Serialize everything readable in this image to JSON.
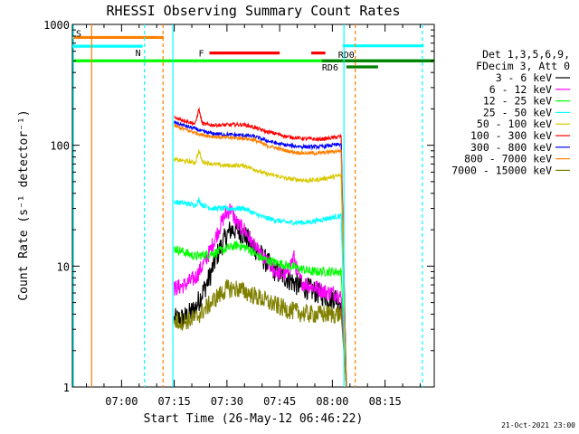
{
  "chart_data": {
    "type": "line",
    "title": "RHESSI Observing Summary Count Rates",
    "xlabel": "Start Time (26-May-12 06:46:22)",
    "ylabel": "Count Rate (s⁻¹ detector⁻¹)",
    "yscale": "log",
    "ylim": [
      1,
      1000
    ],
    "xlim_minutes": [
      406,
      509
    ],
    "x_tick_labels": [
      "07:00",
      "07:15",
      "07:30",
      "07:45",
      "08:00",
      "08:15"
    ],
    "x_tick_minutes": [
      420,
      435,
      450,
      465,
      480,
      495
    ],
    "y_tick_labels": [
      "1",
      "10",
      "100",
      "1000"
    ],
    "y_tick_values": [
      1,
      10,
      100,
      1000
    ],
    "grid": false,
    "legend_position": "right",
    "legend_header": [
      "Det 1,3,5,6,9,",
      "FDecim 3, Att 0"
    ],
    "timestamp": "21-Oct-2021 23:00",
    "series": [
      {
        "name": "3 - 6 keV",
        "color": "#000000",
        "x": [
          435,
          438,
          441,
          443,
          445,
          447,
          449,
          451,
          453,
          455,
          458,
          461,
          464,
          467,
          470,
          473,
          476,
          479,
          481,
          482.5,
          484
        ],
        "values": [
          3.6,
          3.7,
          4.5,
          6,
          8,
          12,
          16,
          20,
          20,
          18,
          14,
          11,
          9,
          8,
          7,
          6.5,
          6,
          5.5,
          5.5,
          5,
          1
        ]
      },
      {
        "name": "6 - 12 keV",
        "color": "#ff00ff",
        "x": [
          435,
          438,
          441,
          443,
          445,
          447,
          449,
          451,
          453,
          455,
          458,
          461,
          464,
          467,
          469,
          470,
          471,
          473,
          476,
          479,
          481,
          482.5,
          484
        ],
        "values": [
          6.5,
          7,
          8,
          10,
          13,
          18,
          25,
          30,
          22,
          20,
          14,
          11,
          9,
          8.5,
          12,
          9,
          7.5,
          7,
          6.5,
          6,
          6,
          5.5,
          1
        ]
      },
      {
        "name": "12 - 25 keV",
        "color": "#00ff00",
        "x": [
          435,
          438,
          441,
          444,
          447,
          450,
          453,
          456,
          459,
          462,
          465,
          468,
          471,
          474,
          477,
          480,
          482.5,
          484
        ],
        "values": [
          14,
          13,
          12,
          12.5,
          13,
          14,
          15,
          14,
          12,
          11,
          10.5,
          10,
          9.5,
          9,
          9,
          9,
          9,
          1
        ]
      },
      {
        "name": "25 - 50 keV",
        "color": "#00ffff",
        "x": [
          435,
          438,
          441,
          442,
          443,
          446,
          449,
          452,
          455,
          458,
          461,
          464,
          467,
          470,
          473,
          476,
          479,
          482,
          482.5,
          484
        ],
        "values": [
          34,
          33,
          32,
          35,
          32,
          30,
          30,
          30,
          30,
          27,
          25,
          24,
          23,
          23,
          23,
          24,
          25,
          26,
          26,
          1
        ]
      },
      {
        "name": "50 - 100 keV",
        "color": "#d8c800",
        "x": [
          435,
          438,
          441,
          442,
          443,
          446,
          449,
          452,
          455,
          458,
          461,
          464,
          467,
          470,
          473,
          476,
          479,
          482,
          482.5,
          484
        ],
        "values": [
          76,
          74,
          72,
          90,
          73,
          70,
          68,
          68,
          68,
          63,
          58,
          56,
          53,
          52,
          51,
          52,
          54,
          56,
          56,
          1
        ]
      },
      {
        "name": "100 - 300 keV",
        "color": "#ff0000",
        "x": [
          435,
          438,
          441,
          442,
          443,
          446,
          449,
          452,
          455,
          458,
          461,
          464,
          467,
          470,
          473,
          476,
          479,
          482,
          482.5,
          484
        ],
        "values": [
          170,
          160,
          150,
          200,
          150,
          147,
          147,
          148,
          148,
          140,
          130,
          125,
          118,
          115,
          113,
          112,
          114,
          118,
          118,
          1
        ]
      },
      {
        "name": "300 - 800 keV",
        "color": "#0000ff",
        "x": [
          435,
          438,
          441,
          443,
          446,
          449,
          452,
          455,
          458,
          461,
          464,
          467,
          470,
          473,
          476,
          479,
          482,
          482.5,
          484
        ],
        "values": [
          155,
          145,
          137,
          130,
          125,
          123,
          122,
          121,
          118,
          110,
          104,
          100,
          98,
          97,
          97,
          99,
          102,
          102,
          1
        ]
      },
      {
        "name": "800 - 7000 keV",
        "color": "#ff8000",
        "x": [
          435,
          438,
          441,
          443,
          446,
          449,
          452,
          455,
          458,
          461,
          464,
          467,
          470,
          473,
          476,
          479,
          482,
          482.5,
          484
        ],
        "values": [
          145,
          135,
          127,
          122,
          118,
          116,
          115,
          114,
          110,
          100,
          95,
          90,
          87,
          86,
          86,
          88,
          90,
          90,
          1
        ]
      },
      {
        "name": "7000 - 15000 keV",
        "color": "#808000",
        "x": [
          435,
          438,
          441,
          444,
          447,
          450,
          453,
          456,
          459,
          462,
          465,
          468,
          471,
          474,
          477,
          480,
          482.5,
          484
        ],
        "values": [
          3.5,
          3.5,
          3.7,
          4.5,
          5.5,
          6.5,
          6.5,
          6,
          5.5,
          5,
          4.6,
          4.3,
          4.1,
          4,
          4,
          4,
          4,
          1
        ]
      }
    ],
    "flag_bars": [
      {
        "label": "S",
        "color": "#ff8000",
        "x": [
          406,
          432
        ],
        "value": 780
      },
      {
        "label": "N",
        "color": "#00ffff",
        "x": [
          406,
          426
        ],
        "value": 660
      },
      {
        "label": "F",
        "color": "#ff0000",
        "x": [
          445,
          465
        ],
        "value": 580
      },
      {
        "label": "",
        "color": "#ff0000",
        "x": [
          474,
          478
        ],
        "value": 580
      },
      {
        "label": "",
        "color": "#00ff00",
        "x": [
          406,
          509
        ],
        "value": 500
      },
      {
        "label": "RD0",
        "color": "#008000",
        "x": [
          477,
          509
        ],
        "value": 500
      },
      {
        "label": "RD6",
        "color": "#008000",
        "x": [
          484,
          493
        ],
        "value": 445
      },
      {
        "label": "",
        "color": "#00ffff",
        "x": [
          483,
          506
        ],
        "value": 665
      }
    ],
    "vertical_markers": [
      {
        "x": 406.3,
        "color": "#00ffff",
        "style": "solid"
      },
      {
        "x": 411.5,
        "color": "#ff8000",
        "style": "solid"
      },
      {
        "x": 426.5,
        "color": "#00ffff",
        "style": "dashed"
      },
      {
        "x": 431.8,
        "color": "#ff8000",
        "style": "dashed"
      },
      {
        "x": 434.6,
        "color": "#00ffff",
        "style": "solid"
      },
      {
        "x": 483.3,
        "color": "#00ffff",
        "style": "solid"
      },
      {
        "x": 486.5,
        "color": "#ff8000",
        "style": "dashed"
      },
      {
        "x": 505.6,
        "color": "#00ffff",
        "style": "dashed"
      }
    ]
  }
}
